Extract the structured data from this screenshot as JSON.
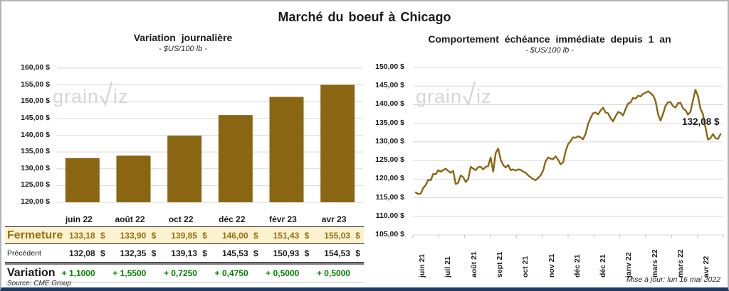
{
  "title": "Marché du boeuf à Chicago",
  "watermark": {
    "left": "grain",
    "right": "iz"
  },
  "colors": {
    "accent": "#8a6613",
    "close_text": "#97700e",
    "close_bg": "#fdf2d0",
    "variation_green": "#008000",
    "grid": "#d9d9d9",
    "watermark": "#d6d6d6",
    "bottom_bar_navy": "#203864"
  },
  "chart_data": [
    {
      "type": "bar",
      "title": "Variation journalière",
      "subtitle": "- $US/100 lb -",
      "categories": [
        "juin 22",
        "août 22",
        "oct 22",
        "déc 22",
        "févr 23",
        "avr 23"
      ],
      "values": [
        133.18,
        133.9,
        139.85,
        146.0,
        151.43,
        155.03
      ],
      "ylabel": "$US/100 lb",
      "ylim": [
        120,
        160
      ],
      "ytick_step": 5,
      "ytick_labels": [
        "160,00 $",
        "155,00 $",
        "150,00 $",
        "145,00 $",
        "140,00 $",
        "135,00 $",
        "130,00 $",
        "125,00 $",
        "120,00 $"
      ],
      "grid": true,
      "legend": "none"
    },
    {
      "type": "line",
      "title": "Comportement échéance immédiate depuis 1 an",
      "subtitle": "- $US/100 lb -",
      "x_labels": [
        "juin 21",
        "juil 21",
        "août 21",
        "sept 21",
        "oct 21",
        "nov 21",
        "déc 21",
        "déc 21",
        "janv 22",
        "mars 22",
        "mars 22",
        "avr 22"
      ],
      "values": [
        116.4,
        116.0,
        116.1,
        117.6,
        118.4,
        119.8,
        119.7,
        121.4,
        121.3,
        122.4,
        122.0,
        122.4,
        122.8,
        122.2,
        121.7,
        122.2,
        118.7,
        119.0,
        121.0,
        120.5,
        119.2,
        120.0,
        123.3,
        122.8,
        122.4,
        123.2,
        123.3,
        122.6,
        123.3,
        123.5,
        125.8,
        122.0,
        127.0,
        128.2,
        125.2,
        123.8,
        123.1,
        123.8,
        122.4,
        122.6,
        122.3,
        122.6,
        122.5,
        122.0,
        121.7,
        121.0,
        120.5,
        120.0,
        119.7,
        120.3,
        121.0,
        122.3,
        124.8,
        125.8,
        125.5,
        125.4,
        126.1,
        125.2,
        124.0,
        124.5,
        127.5,
        129.4,
        130.2,
        131.2,
        131.1,
        131.5,
        131.2,
        130.7,
        132.2,
        134.8,
        136.4,
        137.7,
        137.9,
        137.4,
        138.4,
        139.2,
        137.9,
        137.7,
        136.4,
        135.5,
        136.9,
        138.0,
        137.8,
        137.1,
        138.8,
        140.3,
        140.6,
        141.8,
        141.6,
        142.4,
        142.2,
        142.9,
        143.2,
        143.6,
        143.1,
        142.5,
        141.0,
        137.5,
        135.7,
        137.5,
        139.7,
        140.6,
        140.7,
        139.6,
        139.2,
        140.4,
        140.5,
        139.0,
        138.5,
        137.3,
        138.1,
        141.2,
        144.0,
        142.3,
        138.9,
        137.5,
        133.8,
        130.6,
        131.0,
        132.1,
        131.0,
        130.8,
        132.08
      ],
      "ylabel": "$US/100 lb",
      "ylim": [
        105,
        150
      ],
      "ytick_step": 5,
      "ytick_labels": [
        "150,00 $",
        "145,00 $",
        "140,00 $",
        "135,00 $",
        "130,00 $",
        "125,00 $",
        "120,00 $",
        "115,00 $",
        "110,00 $",
        "105,00 $"
      ],
      "grid": true,
      "legend": "none",
      "annotation": {
        "text": "132,08 $",
        "value": 132.08
      }
    }
  ],
  "table": {
    "columns": [
      "juin 22",
      "août 22",
      "oct 22",
      "déc 22",
      "févr 23",
      "avr 23"
    ],
    "currency": "$",
    "rows": [
      {
        "label": "Fermeture",
        "style": "close",
        "values": [
          "133,18",
          "133,90",
          "139,85",
          "146,00",
          "151,43",
          "155,03"
        ]
      },
      {
        "label": "Précédent",
        "style": "previous",
        "values": [
          "132,08",
          "132,35",
          "139,13",
          "145,53",
          "150,93",
          "154,53"
        ]
      },
      {
        "label": "Variation",
        "style": "variation",
        "values": [
          "+ 1,1000",
          "+ 1,5500",
          "+ 0,7250",
          "+ 0,4750",
          "+ 0,5000",
          "+ 0,5000"
        ]
      }
    ]
  },
  "footnotes": {
    "source": "Source: CME Group",
    "updated": "Mise à jour: lun 16 mai 2022"
  }
}
